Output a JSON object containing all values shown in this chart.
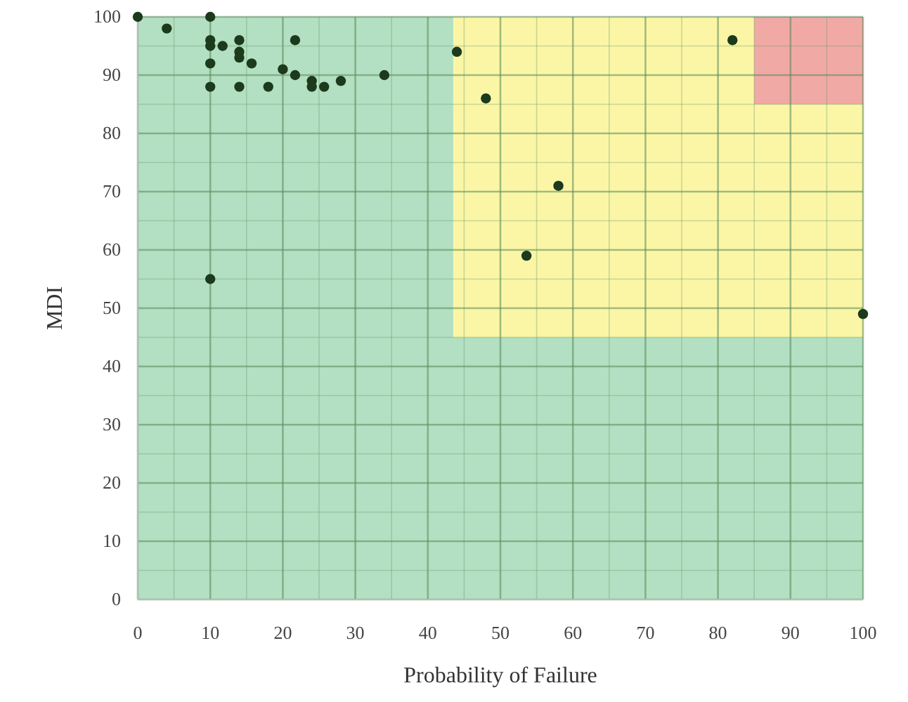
{
  "chart_data": {
    "type": "scatter",
    "xlabel": "Probability of Failure",
    "ylabel": "MDI",
    "xlim": [
      0,
      100
    ],
    "ylim": [
      0,
      100
    ],
    "xticks": [
      0,
      {
        "value": 5,
        "label": null
      },
      10,
      {
        "value": 15,
        "label": null
      },
      20,
      {
        "value": 25,
        "label": null
      },
      30,
      {
        "value": 35,
        "label": null
      },
      40,
      {
        "value": 45,
        "label": null
      },
      50,
      {
        "value": 55,
        "label": null
      },
      60,
      {
        "value": 65,
        "label": null
      },
      70,
      {
        "value": 75,
        "label": null
      },
      80,
      {
        "value": 85,
        "label": null
      },
      90,
      {
        "value": 95,
        "label": null
      },
      100
    ],
    "yticks": [
      0,
      {
        "value": 5,
        "label": null
      },
      10,
      {
        "value": 15,
        "label": null
      },
      20,
      {
        "value": 25,
        "label": null
      },
      30,
      {
        "value": 35,
        "label": null
      },
      40,
      {
        "value": 45,
        "label": null
      },
      50,
      {
        "value": 55,
        "label": null
      },
      60,
      {
        "value": 65,
        "label": null
      },
      70,
      {
        "value": 75,
        "label": null
      },
      80,
      {
        "value": 85,
        "label": null
      },
      90,
      {
        "value": 95,
        "label": null
      },
      100
    ],
    "grid": true,
    "marker": "circle",
    "series": [
      {
        "color": "#1c3a1c",
        "x": [
          0,
          4,
          10,
          10,
          10,
          11.7,
          14,
          14,
          14,
          15.7,
          10,
          21.7,
          20,
          21.7,
          10,
          14,
          18,
          24,
          24,
          25.7,
          28,
          34,
          44,
          48,
          10,
          82,
          58,
          53.6,
          100
        ],
        "values": [
          100,
          98,
          100,
          96,
          95,
          95,
          96,
          94,
          93,
          92,
          92,
          96,
          91,
          90,
          88,
          88,
          88,
          89,
          88,
          88,
          89,
          90,
          94,
          86,
          55,
          96,
          71,
          59,
          49
        ]
      }
    ]
  }
}
